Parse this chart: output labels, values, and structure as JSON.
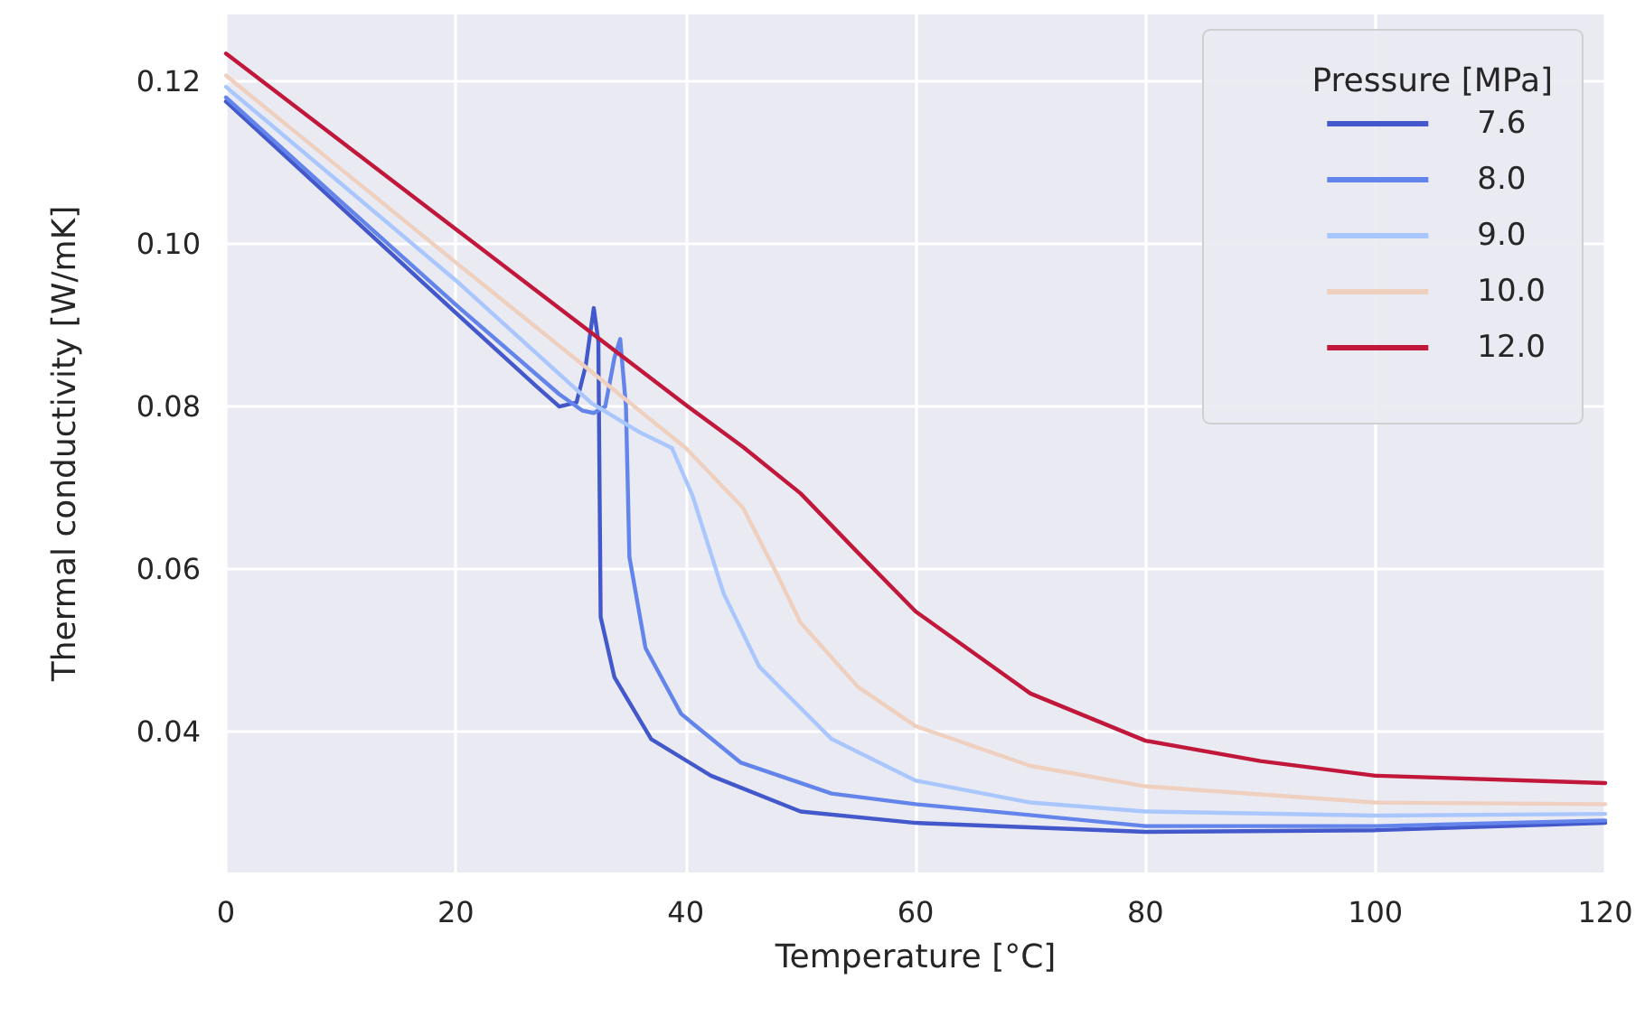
{
  "chart_data": {
    "type": "line",
    "xlabel": "Temperature [°C]",
    "ylabel": "Thermal conductivity [W/mK]",
    "legend_title": "Pressure [MPa]",
    "xlim": [
      0,
      120
    ],
    "xticks": [
      0,
      20,
      40,
      60,
      80,
      100,
      120
    ],
    "ylim": [
      0.0227,
      0.1282
    ],
    "yticks": [
      0.04,
      0.06,
      0.08,
      {
        "value": 0.1,
        "label": "0.10"
      },
      0.12
    ],
    "grid": true,
    "legend": "top right",
    "marker": "none",
    "line_style": "solid",
    "series": [
      {
        "name": "7.6",
        "color": "#4358cb",
        "x": [
          0,
          10,
          20,
          27,
          29,
          30.5,
          31.3,
          32,
          32.4,
          32.6,
          33.8,
          37,
          42.2,
          50,
          60,
          80,
          100,
          120
        ],
        "values": [
          0.1175,
          0.1045,
          0.0915,
          0.0825,
          0.08,
          0.0805,
          0.085,
          0.0921,
          0.088,
          0.0541,
          0.0467,
          0.0391,
          0.0346,
          0.0302,
          0.0288,
          0.0277,
          0.0279,
          0.0288
        ]
      },
      {
        "name": "8.0",
        "color": "#6384eb",
        "x": [
          0,
          10,
          20,
          29,
          31,
          32,
          33,
          33.8,
          34.3,
          34.8,
          35.1,
          36.5,
          39.6,
          44.8,
          52.7,
          60,
          80,
          100,
          120
        ],
        "values": [
          0.118,
          0.1052,
          0.0925,
          0.0815,
          0.0795,
          0.0792,
          0.08,
          0.086,
          0.0883,
          0.08,
          0.0615,
          0.0503,
          0.0422,
          0.0362,
          0.0324,
          0.0311,
          0.0284,
          0.0284,
          0.0291
        ]
      },
      {
        "name": "9.0",
        "color": "#aac7fd",
        "x": [
          0,
          10,
          20,
          31.8,
          35.9,
          38.8,
          40.6,
          43.3,
          46.4,
          52.7,
          60,
          70,
          80,
          100,
          120
        ],
        "values": [
          0.1193,
          0.1074,
          0.0955,
          0.0804,
          0.0769,
          0.0749,
          0.069,
          0.057,
          0.048,
          0.0391,
          0.034,
          0.0313,
          0.0302,
          0.0297,
          0.0299
        ]
      },
      {
        "name": "10.0",
        "color": "#efcfbe",
        "x": [
          0,
          10,
          20,
          32.2,
          40,
          45,
          48,
          50,
          55,
          60,
          70,
          80,
          100,
          120
        ],
        "values": [
          0.1207,
          0.1092,
          0.0977,
          0.0838,
          0.0749,
          0.0675,
          0.0592,
          0.0534,
          0.0455,
          0.0407,
          0.0358,
          0.0333,
          0.0313,
          0.0311
        ]
      },
      {
        "name": "12.0",
        "color": "#c0173b",
        "x": [
          0,
          10,
          20,
          30,
          40,
          45,
          50,
          55,
          60,
          70,
          80,
          90,
          100,
          120
        ],
        "values": [
          0.1234,
          0.1126,
          0.1018,
          0.091,
          0.0802,
          0.075,
          0.0693,
          0.062,
          0.0548,
          0.0447,
          0.0389,
          0.0364,
          0.0346,
          0.0337
        ]
      }
    ]
  }
}
